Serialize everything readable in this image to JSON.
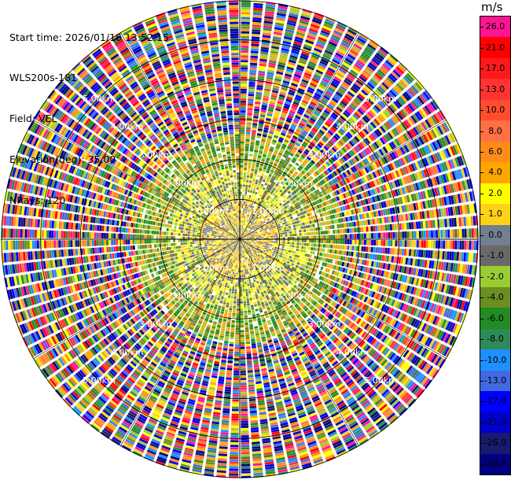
{
  "header": {
    "start_time": "Start time: 2026/01/16 13:52:15",
    "instrument": "WLS200s-181",
    "field": "Field: VEL",
    "elevation": "Elevation(deg): 35.00",
    "nrays": "NRays: 120"
  },
  "colorbar": {
    "unit": "m/s",
    "levels": [
      "26.0",
      "21.0",
      "17.0",
      "13.0",
      "10.0",
      "8.0",
      "6.0",
      "4.0",
      "2.0",
      "1.0",
      "0.0",
      "-1.0",
      "-2.0",
      "-4.0",
      "-6.0",
      "-8.0",
      "-10.0",
      "-13.0",
      "-17.0",
      "-21.0",
      "-26.0",
      "-30.0"
    ],
    "colors": [
      "#ff1493",
      "#ff0000",
      "#ff1a1a",
      "#ff3333",
      "#ff4d2e",
      "#ff7043",
      "#ff8c1a",
      "#ffa500",
      "#ffff00",
      "#ffd21a",
      "#708090",
      "#696969",
      "#9acd32",
      "#6b8e23",
      "#228b22",
      "#2e8b57",
      "#1e90ff",
      "#4169e1",
      "#0000ff",
      "#0000cd",
      "#191970",
      "#000080"
    ]
  },
  "chart_data": {
    "type": "heatmap",
    "projection": "polar PPI",
    "field": "VEL",
    "unit": "m/s",
    "nrays": 120,
    "elevation_deg": 35.0,
    "range_rings_km": [
      1.0,
      2.0,
      3.0,
      4.0,
      5.0
    ],
    "ring_labels": [
      "1.00km",
      "2.00km",
      "3.00km",
      "4.00km",
      "5.00km"
    ],
    "color_range": [
      -30.0,
      26.0
    ],
    "zones": [
      {
        "range_km": [
          0.0,
          1.0
        ],
        "dominant_values": [
          0.0,
          1.0,
          2.0,
          4.0,
          -1.0
        ]
      },
      {
        "range_km": [
          1.0,
          1.8
        ],
        "dominant_values": [
          -1.0,
          -2.0,
          1.0,
          2.0,
          -4.0
        ]
      },
      {
        "range_km": [
          1.8,
          2.6
        ],
        "dominant_values": [
          -4.0,
          -6.0,
          -2.0,
          4.0
        ]
      },
      {
        "range_km": [
          2.6,
          6.0
        ],
        "dominant_values": [
          "noise",
          -30.0,
          26.0
        ]
      }
    ]
  }
}
